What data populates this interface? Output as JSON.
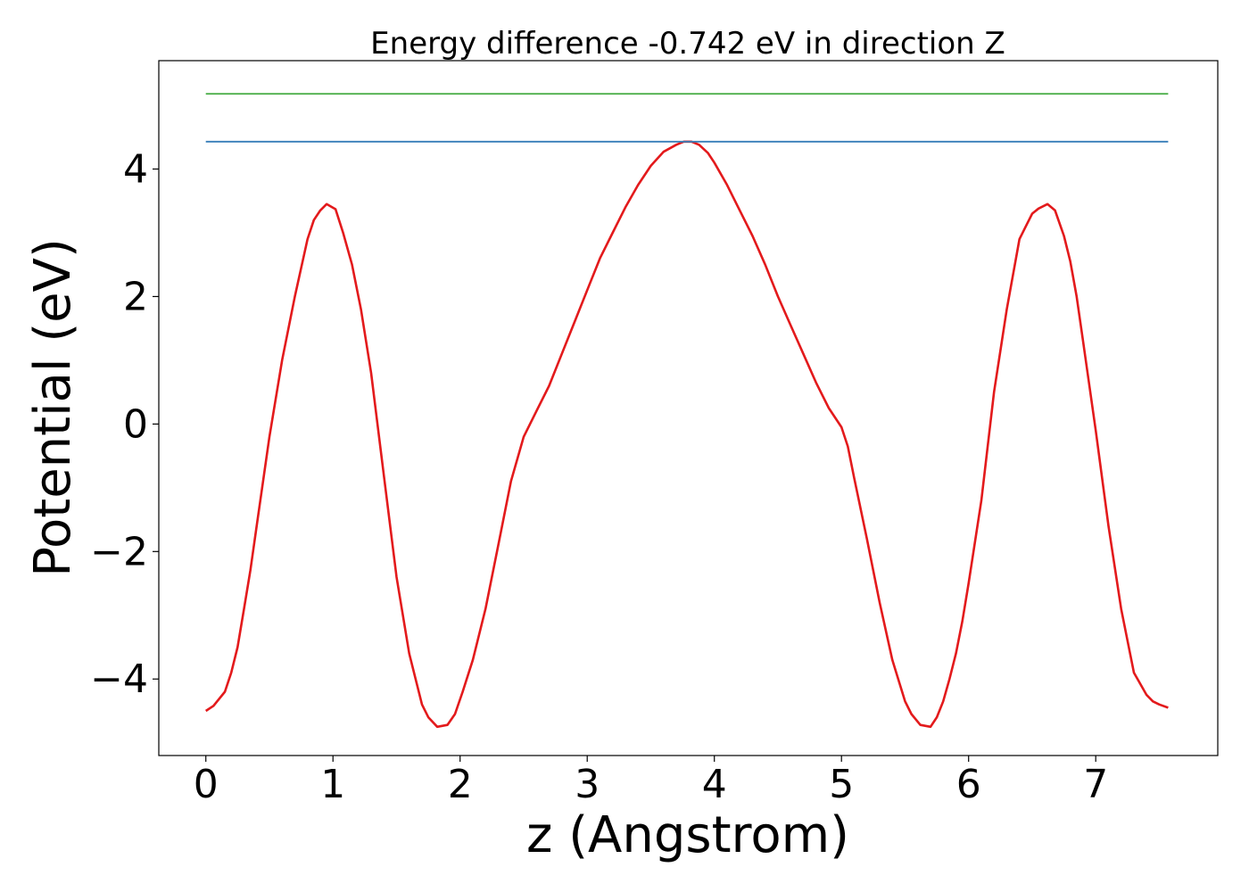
{
  "chart_data": {
    "type": "line",
    "title": "Energy difference -0.742 eV in direction Z",
    "xlabel": "z (Angstrom)",
    "ylabel": "Potential (eV)",
    "xlim": [
      -0.37,
      7.96
    ],
    "ylim": [
      -5.2,
      5.7
    ],
    "xticks": [
      0,
      1,
      2,
      3,
      4,
      5,
      6,
      7
    ],
    "yticks": [
      -4,
      -2,
      0,
      2,
      4
    ],
    "ytick_labels": [
      "−4",
      "−2",
      "0",
      "2",
      "4"
    ],
    "grid": false,
    "series": [
      {
        "color": "#e31a1c",
        "x": [
          0.0,
          0.06,
          0.15,
          0.2,
          0.25,
          0.3,
          0.35,
          0.4,
          0.5,
          0.6,
          0.7,
          0.8,
          0.85,
          0.9,
          0.95,
          1.02,
          1.08,
          1.15,
          1.22,
          1.3,
          1.4,
          1.5,
          1.6,
          1.7,
          1.75,
          1.82,
          1.9,
          1.96,
          2.02,
          2.1,
          2.2,
          2.3,
          2.4,
          2.5,
          2.6,
          2.7,
          2.8,
          2.9,
          3.0,
          3.1,
          3.2,
          3.3,
          3.4,
          3.5,
          3.6,
          3.7,
          3.76,
          3.82,
          3.88,
          3.95,
          4.0,
          4.1,
          4.2,
          4.3,
          4.4,
          4.5,
          4.6,
          4.7,
          4.8,
          4.9,
          5.0,
          5.05,
          5.1,
          5.2,
          5.3,
          5.4,
          5.5,
          5.55,
          5.62,
          5.7,
          5.75,
          5.8,
          5.85,
          5.9,
          5.95,
          6.0,
          6.1,
          6.2,
          6.3,
          6.4,
          6.45,
          6.5,
          6.55,
          6.62,
          6.68,
          6.75,
          6.8,
          6.85,
          6.9,
          7.0,
          7.1,
          7.2,
          7.3,
          7.4,
          7.45,
          7.5,
          7.57
        ],
        "y": [
          -4.5,
          -4.42,
          -4.2,
          -3.9,
          -3.5,
          -2.9,
          -2.3,
          -1.6,
          -0.2,
          1.0,
          2.0,
          2.9,
          3.2,
          3.35,
          3.45,
          3.37,
          3.0,
          2.5,
          1.8,
          0.8,
          -0.8,
          -2.4,
          -3.6,
          -4.4,
          -4.6,
          -4.75,
          -4.72,
          -4.55,
          -4.2,
          -3.7,
          -2.9,
          -1.9,
          -0.9,
          -0.2,
          0.2,
          0.6,
          1.1,
          1.6,
          2.1,
          2.6,
          3.0,
          3.4,
          3.75,
          4.05,
          4.27,
          4.38,
          4.43,
          4.43,
          4.38,
          4.25,
          4.1,
          3.75,
          3.35,
          2.95,
          2.5,
          2.0,
          1.55,
          1.1,
          0.65,
          0.25,
          -0.05,
          -0.35,
          -0.85,
          -1.8,
          -2.8,
          -3.7,
          -4.35,
          -4.55,
          -4.72,
          -4.75,
          -4.6,
          -4.35,
          -4.0,
          -3.6,
          -3.1,
          -2.5,
          -1.2,
          0.5,
          1.8,
          2.9,
          3.1,
          3.3,
          3.38,
          3.45,
          3.35,
          2.95,
          2.55,
          2.0,
          1.3,
          -0.1,
          -1.6,
          -2.9,
          -3.9,
          -4.25,
          -4.35,
          -4.4,
          -4.45
        ]
      },
      {
        "color": "#377eb8",
        "x": [
          0.0,
          7.57
        ],
        "y": [
          4.43,
          4.43
        ]
      },
      {
        "color": "#4daf4a",
        "x": [
          0.0,
          7.57
        ],
        "y": [
          5.18,
          5.18
        ]
      }
    ]
  }
}
